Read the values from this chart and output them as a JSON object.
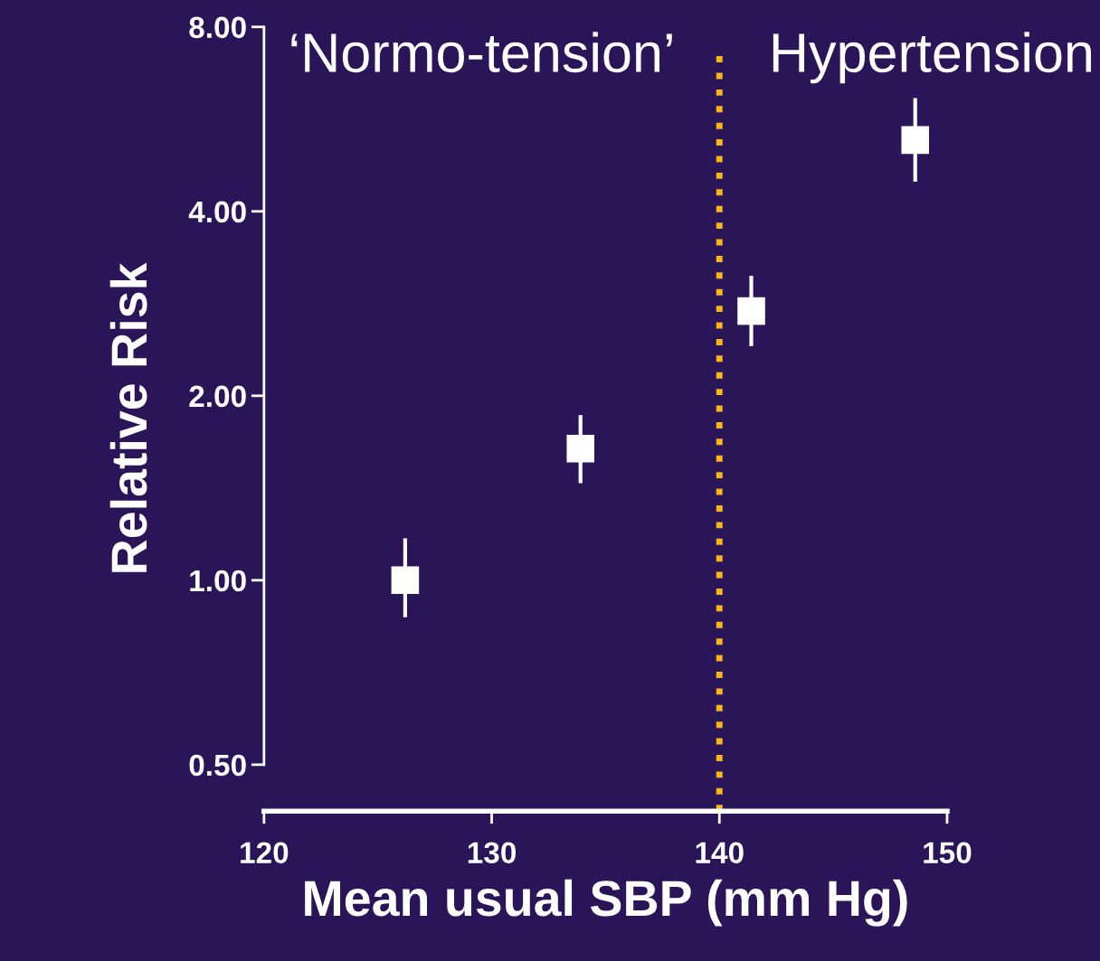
{
  "chart_data": {
    "type": "scatter",
    "xlabel": "Mean usual SBP (mm Hg)",
    "ylabel": "Relative Risk",
    "x": [
      126.2,
      133.9,
      141.4,
      148.6
    ],
    "series": [
      {
        "color": "#ffffff",
        "values": [
          1.0,
          1.64,
          2.75,
          5.23
        ],
        "errors": [
          [
            0.87,
            1.17
          ],
          [
            1.44,
            1.86
          ],
          [
            2.41,
            3.14
          ],
          [
            4.47,
            6.12
          ]
        ]
      }
    ],
    "marker": "square",
    "log": "y",
    "xlim": [
      120,
      150
    ],
    "xticks": [
      120,
      130,
      140,
      150
    ],
    "ylim": [
      0.42,
      8
    ],
    "yticks": [
      {
        "value": 0.5,
        "label": "0.50"
      },
      {
        "value": 1,
        "label": "1.00"
      },
      {
        "value": 2,
        "label": "2.00"
      },
      {
        "value": 4,
        "label": "4.00"
      },
      {
        "value": 8,
        "label": "8.00"
      }
    ],
    "ref_lines": [
      {
        "axis": "x",
        "value": 140,
        "color": "#f7b718",
        "line_style": "dotted"
      }
    ],
    "annotations": [
      "‘Normo-tension’",
      "Hypertension"
    ],
    "grid": false,
    "legend": false
  }
}
